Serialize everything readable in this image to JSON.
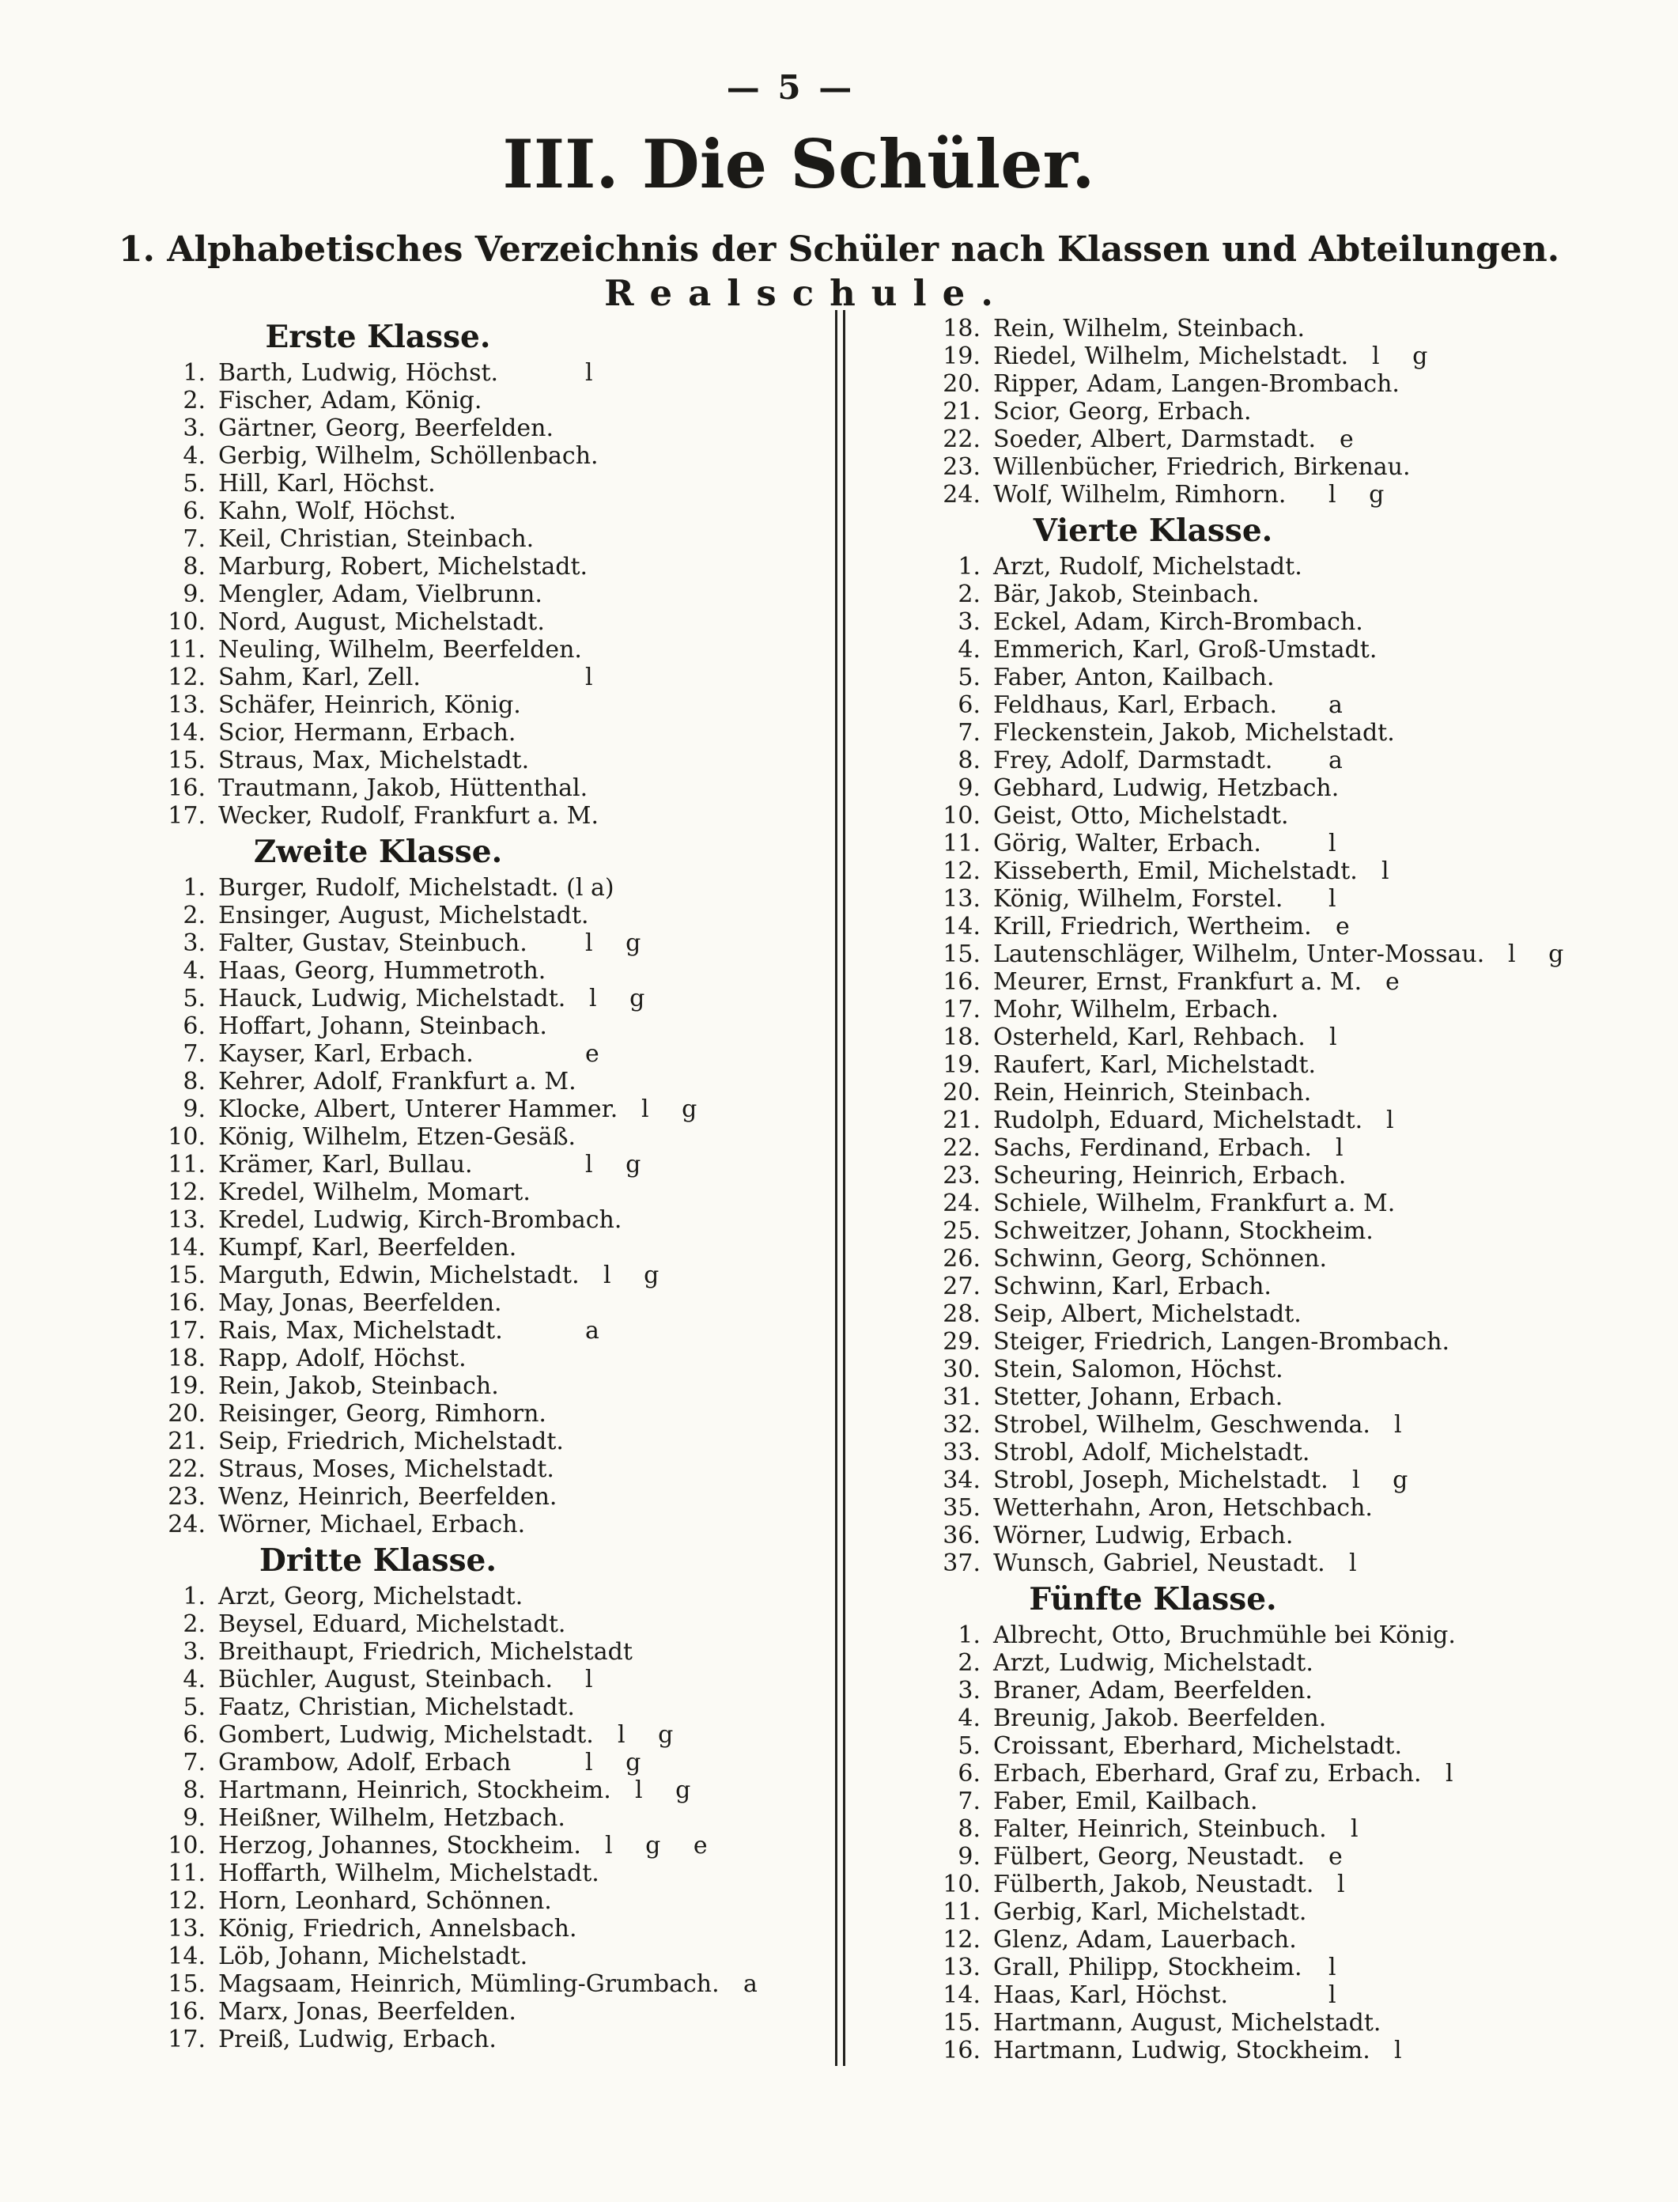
{
  "page": {
    "number": "— 5 —"
  },
  "header": {
    "title": "III. Die Schüler.",
    "subtitle": "1. Alphabetisches Verzeichnis der Schüler nach Klassen und Abteilungen.",
    "school": "Realschule."
  },
  "columns": {
    "left": {
      "blocks": [
        {
          "heading": "Erste Klasse.",
          "entries": [
            {
              "n": "1.",
              "t": "Barth, Ludwig, Höchst.",
              "m": "l"
            },
            {
              "n": "2.",
              "t": "Fischer, Adam, König.",
              "m": ""
            },
            {
              "n": "3.",
              "t": "Gärtner, Georg, Beerfelden.",
              "m": ""
            },
            {
              "n": "4.",
              "t": "Gerbig, Wilhelm, Schöllenbach.",
              "m": ""
            },
            {
              "n": "5.",
              "t": "Hill, Karl, Höchst.",
              "m": ""
            },
            {
              "n": "6.",
              "t": "Kahn, Wolf, Höchst.",
              "m": ""
            },
            {
              "n": "7.",
              "t": "Keil, Christian, Steinbach.",
              "m": ""
            },
            {
              "n": "8.",
              "t": "Marburg, Robert, Michelstadt.",
              "m": ""
            },
            {
              "n": "9.",
              "t": "Mengler, Adam, Vielbrunn.",
              "m": ""
            },
            {
              "n": "10.",
              "t": "Nord, August, Michelstadt.",
              "m": ""
            },
            {
              "n": "11.",
              "t": "Neuling, Wilhelm, Beerfelden.",
              "m": ""
            },
            {
              "n": "12.",
              "t": "Sahm, Karl, Zell.",
              "m": "l"
            },
            {
              "n": "13.",
              "t": "Schäfer, Heinrich, König.",
              "m": ""
            },
            {
              "n": "14.",
              "t": "Scior, Hermann, Erbach.",
              "m": ""
            },
            {
              "n": "15.",
              "t": "Straus, Max, Michelstadt.",
              "m": ""
            },
            {
              "n": "16.",
              "t": "Trautmann, Jakob, Hüttenthal.",
              "m": ""
            },
            {
              "n": "17.",
              "t": "Wecker, Rudolf, Frankfurt a. M.",
              "m": ""
            }
          ]
        },
        {
          "heading": "Zweite Klasse.",
          "entries": [
            {
              "n": "1.",
              "t": "Burger, Rudolf, Michelstadt. (l a)",
              "m": ""
            },
            {
              "n": "2.",
              "t": "Ensinger, August, Michelstadt.",
              "m": ""
            },
            {
              "n": "3.",
              "t": "Falter, Gustav, Steinbuch.",
              "m": "l g"
            },
            {
              "n": "4.",
              "t": "Haas, Georg, Hummetroth.",
              "m": ""
            },
            {
              "n": "5.",
              "t": "Hauck, Ludwig, Michelstadt.",
              "m": "l g"
            },
            {
              "n": "6.",
              "t": "Hoffart, Johann, Steinbach.",
              "m": ""
            },
            {
              "n": "7.",
              "t": "Kayser, Karl, Erbach.",
              "m": "e"
            },
            {
              "n": "8.",
              "t": "Kehrer, Adolf, Frankfurt a. M.",
              "m": ""
            },
            {
              "n": "9.",
              "t": "Klocke, Albert, Unterer Hammer.",
              "m": "l g"
            },
            {
              "n": "10.",
              "t": "König, Wilhelm, Etzen-Gesäß.",
              "m": ""
            },
            {
              "n": "11.",
              "t": "Krämer, Karl, Bullau.",
              "m": "l g"
            },
            {
              "n": "12.",
              "t": "Kredel, Wilhelm, Momart.",
              "m": ""
            },
            {
              "n": "13.",
              "t": "Kredel, Ludwig, Kirch-Brombach.",
              "m": ""
            },
            {
              "n": "14.",
              "t": "Kumpf, Karl, Beerfelden.",
              "m": ""
            },
            {
              "n": "15.",
              "t": "Marguth, Edwin, Michelstadt.",
              "m": "l g"
            },
            {
              "n": "16.",
              "t": "May, Jonas, Beerfelden.",
              "m": ""
            },
            {
              "n": "17.",
              "t": "Rais, Max, Michelstadt.",
              "m": "a"
            },
            {
              "n": "18.",
              "t": "Rapp, Adolf, Höchst.",
              "m": ""
            },
            {
              "n": "19.",
              "t": "Rein, Jakob, Steinbach.",
              "m": ""
            },
            {
              "n": "20.",
              "t": "Reisinger, Georg, Rimhorn.",
              "m": ""
            },
            {
              "n": "21.",
              "t": "Seip, Friedrich, Michelstadt.",
              "m": ""
            },
            {
              "n": "22.",
              "t": "Straus, Moses, Michelstadt.",
              "m": ""
            },
            {
              "n": "23.",
              "t": "Wenz, Heinrich, Beerfelden.",
              "m": ""
            },
            {
              "n": "24.",
              "t": "Wörner, Michael, Erbach.",
              "m": ""
            }
          ]
        },
        {
          "heading": "Dritte Klasse.",
          "entries": [
            {
              "n": "1.",
              "t": "Arzt, Georg, Michelstadt.",
              "m": ""
            },
            {
              "n": "2.",
              "t": "Beysel, Eduard, Michelstadt.",
              "m": ""
            },
            {
              "n": "3.",
              "t": "Breithaupt, Friedrich, Michelstadt",
              "m": ""
            },
            {
              "n": "4.",
              "t": "Büchler, August, Steinbach.",
              "m": "l"
            },
            {
              "n": "5.",
              "t": "Faatz, Christian, Michelstadt.",
              "m": ""
            },
            {
              "n": "6.",
              "t": "Gombert, Ludwig, Michelstadt.",
              "m": "l g"
            },
            {
              "n": "7.",
              "t": "Grambow, Adolf, Erbach",
              "m": "l g"
            },
            {
              "n": "8.",
              "t": "Hartmann, Heinrich, Stockheim.",
              "m": "l g"
            },
            {
              "n": "9.",
              "t": "Heißner, Wilhelm, Hetzbach.",
              "m": ""
            },
            {
              "n": "10.",
              "t": "Herzog, Johannes, Stockheim.",
              "m": "l g e"
            },
            {
              "n": "11.",
              "t": "Hoffarth, Wilhelm, Michelstadt.",
              "m": ""
            },
            {
              "n": "12.",
              "t": "Horn, Leonhard, Schönnen.",
              "m": ""
            },
            {
              "n": "13.",
              "t": "König, Friedrich, Annelsbach.",
              "m": ""
            },
            {
              "n": "14.",
              "t": "Löb, Johann, Michelstadt.",
              "m": ""
            },
            {
              "n": "15.",
              "t": "Magsaam, Heinrich, Mümling-Grumbach.",
              "m": "a"
            },
            {
              "n": "16.",
              "t": "Marx, Jonas, Beerfelden.",
              "m": ""
            },
            {
              "n": "17.",
              "t": "Preiß, Ludwig, Erbach.",
              "m": ""
            }
          ]
        }
      ]
    },
    "right": {
      "blocks": [
        {
          "heading": "",
          "entries": [
            {
              "n": "18.",
              "t": "Rein, Wilhelm, Steinbach.",
              "m": ""
            },
            {
              "n": "19.",
              "t": "Riedel, Wilhelm, Michelstadt.",
              "m": "l g"
            },
            {
              "n": "20.",
              "t": "Ripper, Adam, Langen-Brombach.",
              "m": ""
            },
            {
              "n": "21.",
              "t": "Scior, Georg, Erbach.",
              "m": ""
            },
            {
              "n": "22.",
              "t": "Soeder, Albert, Darmstadt.",
              "m": "e"
            },
            {
              "n": "23.",
              "t": "Willenbücher, Friedrich, Birkenau.",
              "m": ""
            },
            {
              "n": "24.",
              "t": "Wolf, Wilhelm, Rimhorn.",
              "m": "l g"
            }
          ]
        },
        {
          "heading": "Vierte Klasse.",
          "entries": [
            {
              "n": "1.",
              "t": "Arzt, Rudolf, Michelstadt.",
              "m": ""
            },
            {
              "n": "2.",
              "t": "Bär, Jakob, Steinbach.",
              "m": ""
            },
            {
              "n": "3.",
              "t": "Eckel, Adam, Kirch-Brombach.",
              "m": ""
            },
            {
              "n": "4.",
              "t": "Emmerich, Karl, Groß-Umstadt.",
              "m": ""
            },
            {
              "n": "5.",
              "t": "Faber, Anton, Kailbach.",
              "m": ""
            },
            {
              "n": "6.",
              "t": "Feldhaus, Karl, Erbach.",
              "m": "a"
            },
            {
              "n": "7.",
              "t": "Fleckenstein, Jakob, Michelstadt.",
              "m": ""
            },
            {
              "n": "8.",
              "t": "Frey, Adolf, Darmstadt.",
              "m": "a"
            },
            {
              "n": "9.",
              "t": "Gebhard, Ludwig, Hetzbach.",
              "m": ""
            },
            {
              "n": "10.",
              "t": "Geist, Otto, Michelstadt.",
              "m": ""
            },
            {
              "n": "11.",
              "t": "Görig, Walter, Erbach.",
              "m": "l"
            },
            {
              "n": "12.",
              "t": "Kisseberth, Emil, Michelstadt.",
              "m": "l"
            },
            {
              "n": "13.",
              "t": "König, Wilhelm, Forstel.",
              "m": "l"
            },
            {
              "n": "14.",
              "t": "Krill, Friedrich, Wertheim.",
              "m": "e"
            },
            {
              "n": "15.",
              "t": "Lautenschläger, Wilhelm, Unter-Mossau.",
              "m": "l g"
            },
            {
              "n": "16.",
              "t": "Meurer, Ernst, Frankfurt a. M.",
              "m": "e"
            },
            {
              "n": "17.",
              "t": "Mohr, Wilhelm, Erbach.",
              "m": ""
            },
            {
              "n": "18.",
              "t": "Osterheld, Karl, Rehbach.",
              "m": "l"
            },
            {
              "n": "19.",
              "t": "Raufert, Karl, Michelstadt.",
              "m": ""
            },
            {
              "n": "20.",
              "t": "Rein, Heinrich, Steinbach.",
              "m": ""
            },
            {
              "n": "21.",
              "t": "Rudolph, Eduard, Michelstadt.",
              "m": "l"
            },
            {
              "n": "22.",
              "t": "Sachs, Ferdinand, Erbach.",
              "m": "l"
            },
            {
              "n": "23.",
              "t": "Scheuring, Heinrich, Erbach.",
              "m": ""
            },
            {
              "n": "24.",
              "t": "Schiele, Wilhelm, Frankfurt a. M.",
              "m": ""
            },
            {
              "n": "25.",
              "t": "Schweitzer, Johann, Stockheim.",
              "m": ""
            },
            {
              "n": "26.",
              "t": "Schwinn, Georg, Schönnen.",
              "m": ""
            },
            {
              "n": "27.",
              "t": "Schwinn, Karl, Erbach.",
              "m": ""
            },
            {
              "n": "28.",
              "t": "Seip, Albert, Michelstadt.",
              "m": ""
            },
            {
              "n": "29.",
              "t": "Steiger, Friedrich, Langen-Brombach.",
              "m": ""
            },
            {
              "n": "30.",
              "t": "Stein, Salomon, Höchst.",
              "m": ""
            },
            {
              "n": "31.",
              "t": "Stetter, Johann, Erbach.",
              "m": ""
            },
            {
              "n": "32.",
              "t": "Strobel, Wilhelm, Geschwenda.",
              "m": "l"
            },
            {
              "n": "33.",
              "t": "Strobl, Adolf, Michelstadt.",
              "m": ""
            },
            {
              "n": "34.",
              "t": "Strobl, Joseph, Michelstadt.",
              "m": "l g"
            },
            {
              "n": "35.",
              "t": "Wetterhahn, Aron, Hetschbach.",
              "m": ""
            },
            {
              "n": "36.",
              "t": "Wörner, Ludwig, Erbach.",
              "m": ""
            },
            {
              "n": "37.",
              "t": "Wunsch, Gabriel, Neustadt.",
              "m": "l"
            }
          ]
        },
        {
          "heading": "Fünfte Klasse.",
          "entries": [
            {
              "n": "1.",
              "t": "Albrecht, Otto, Bruchmühle bei König.",
              "m": ""
            },
            {
              "n": "2.",
              "t": "Arzt, Ludwig, Michelstadt.",
              "m": ""
            },
            {
              "n": "3.",
              "t": "Braner, Adam, Beerfelden.",
              "m": ""
            },
            {
              "n": "4.",
              "t": "Breunig, Jakob. Beerfelden.",
              "m": ""
            },
            {
              "n": "5.",
              "t": "Croissant, Eberhard, Michelstadt.",
              "m": ""
            },
            {
              "n": "6.",
              "t": "Erbach, Eberhard, Graf zu, Erbach.",
              "m": "l"
            },
            {
              "n": "7.",
              "t": "Faber, Emil, Kailbach.",
              "m": ""
            },
            {
              "n": "8.",
              "t": "Falter, Heinrich, Steinbuch.",
              "m": "l"
            },
            {
              "n": "9.",
              "t": "Fülbert, Georg, Neustadt.",
              "m": "e"
            },
            {
              "n": "10.",
              "t": "Fülberth, Jakob, Neustadt.",
              "m": "l"
            },
            {
              "n": "11.",
              "t": "Gerbig, Karl, Michelstadt.",
              "m": ""
            },
            {
              "n": "12.",
              "t": "Glenz, Adam, Lauerbach.",
              "m": ""
            },
            {
              "n": "13.",
              "t": "Grall, Philipp, Stockheim.",
              "m": "l"
            },
            {
              "n": "14.",
              "t": "Haas, Karl, Höchst.",
              "m": "l"
            },
            {
              "n": "15.",
              "t": "Hartmann, August, Michelstadt.",
              "m": ""
            },
            {
              "n": "16.",
              "t": "Hartmann, Ludwig, Stockheim.",
              "m": "l"
            }
          ]
        }
      ]
    }
  }
}
